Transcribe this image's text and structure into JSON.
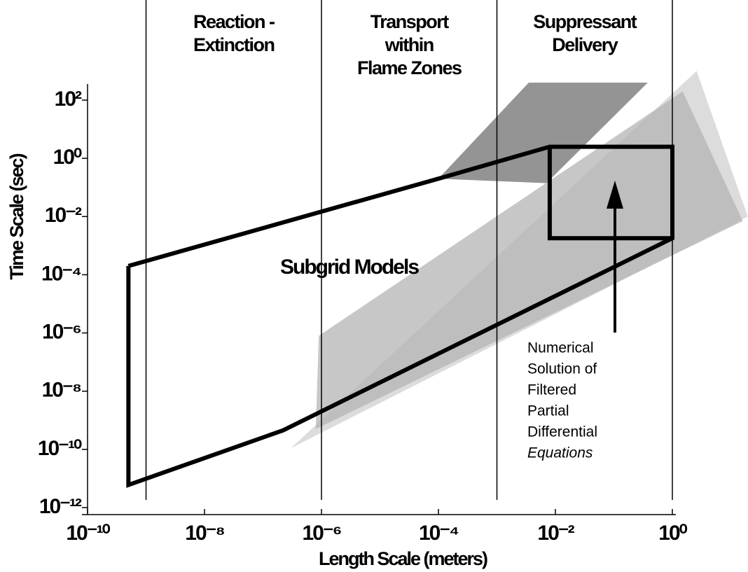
{
  "chart_data": {
    "type": "log-regions",
    "xlabel": "Length Scale (meters)",
    "ylabel": "Time Scale (sec)",
    "xscale": "log",
    "yscale": "log",
    "xlim": [
      1e-10,
      1
    ],
    "ylim": [
      1e-12,
      100
    ],
    "xticks": [
      {
        "value": 1e-10,
        "label": "10⁻¹⁰"
      },
      {
        "value": 1e-08,
        "label": "10⁻⁸"
      },
      {
        "value": 1e-06,
        "label": "10⁻⁶"
      },
      {
        "value": 0.0001,
        "label": "10⁻⁴"
      },
      {
        "value": 0.01,
        "label": "10⁻²"
      },
      {
        "value": 1,
        "label": "10⁰"
      }
    ],
    "yticks": [
      {
        "value": 1e-12,
        "label": "10⁻¹²"
      },
      {
        "value": 1e-10,
        "label": "10⁻¹⁰"
      },
      {
        "value": 1e-08,
        "label": "10⁻⁸"
      },
      {
        "value": 1e-06,
        "label": "10⁻⁶"
      },
      {
        "value": 0.0001,
        "label": "10⁻⁴"
      },
      {
        "value": 0.01,
        "label": "10⁻²"
      },
      {
        "value": 1,
        "label": "10⁰"
      },
      {
        "value": 100,
        "label": "10²"
      }
    ],
    "column_boundaries": [
      1e-09,
      1e-06,
      0.001,
      1
    ],
    "column_labels": [
      [
        "Reaction -",
        "Extinction"
      ],
      [
        "Transport",
        "within",
        "Flame Zones"
      ],
      [
        "Suppressant",
        "Delivery"
      ]
    ],
    "regions": [
      {
        "color": "#d0d0d0",
        "x": [
          3e-07,
          2.6,
          19.5
        ],
        "y": [
          1.1e-10,
          1000,
          0.01
        ]
      },
      {
        "color": "#b4b4b4",
        "x": [
          9e-07,
          1.5,
          16,
          8e-07
        ],
        "y": [
          8e-07,
          200,
          0.007,
          5e-10
        ]
      },
      {
        "color": "#707070",
        "x": [
          0.0001,
          0.0035,
          0.38,
          0.007
        ],
        "y": [
          0.2,
          400,
          400,
          0.14
        ]
      }
    ],
    "outlines": [
      {
        "x": [
          5e-10,
          0.0001,
          0.008,
          1,
          1,
          2.2e-07,
          5e-10,
          5e-10
        ],
        "y": [
          0.0002,
          0.2,
          2.5,
          2.5,
          0.0018,
          4.5e-10,
          6e-12,
          0.0002
        ]
      },
      {
        "x": [
          0.008,
          0.008,
          1
        ],
        "y": [
          2.5,
          0.0018,
          0.0018
        ]
      }
    ],
    "region_label": "Subgrid Models",
    "annotation": [
      "Numerical",
      "Solution of",
      "Filtered",
      "Partial",
      "Differential",
      "Equations"
    ]
  }
}
